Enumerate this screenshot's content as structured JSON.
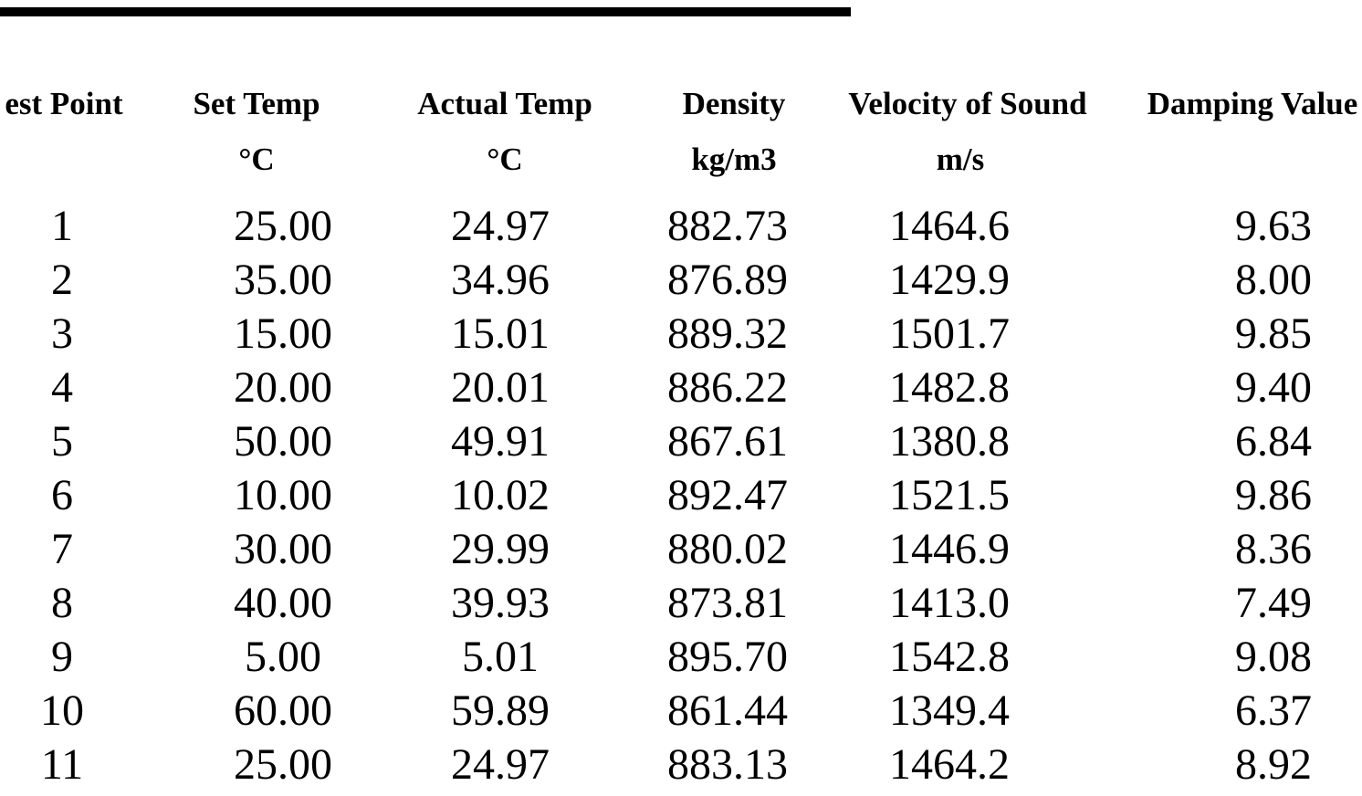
{
  "table": {
    "headers": [
      "est Point",
      "Set Temp",
      "Actual Temp",
      "Density",
      "Velocity of Sound",
      "Damping Value"
    ],
    "units": [
      null,
      "°C",
      "°C",
      "kg/m3",
      "m/s",
      null
    ],
    "rows": [
      [
        "1",
        "25.00",
        "24.97",
        "882.73",
        "1464.6",
        "9.63"
      ],
      [
        "2",
        "35.00",
        "34.96",
        "876.89",
        "1429.9",
        "8.00"
      ],
      [
        "3",
        "15.00",
        "15.01",
        "889.32",
        "1501.7",
        "9.85"
      ],
      [
        "4",
        "20.00",
        "20.01",
        "886.22",
        "1482.8",
        "9.40"
      ],
      [
        "5",
        "50.00",
        "49.91",
        "867.61",
        "1380.8",
        "6.84"
      ],
      [
        "6",
        "10.00",
        "10.02",
        "892.47",
        "1521.5",
        "9.86"
      ],
      [
        "7",
        "30.00",
        "29.99",
        "880.02",
        "1446.9",
        "8.36"
      ],
      [
        "8",
        "40.00",
        "39.93",
        "873.81",
        "1413.0",
        "7.49"
      ],
      [
        "9",
        "5.00",
        "5.01",
        "895.70",
        "1542.8",
        "9.08"
      ],
      [
        "10",
        "60.00",
        "59.89",
        "861.44",
        "1349.4",
        "6.37"
      ],
      [
        "11",
        "25.00",
        "24.97",
        "883.13",
        "1464.2",
        "8.92"
      ]
    ]
  }
}
